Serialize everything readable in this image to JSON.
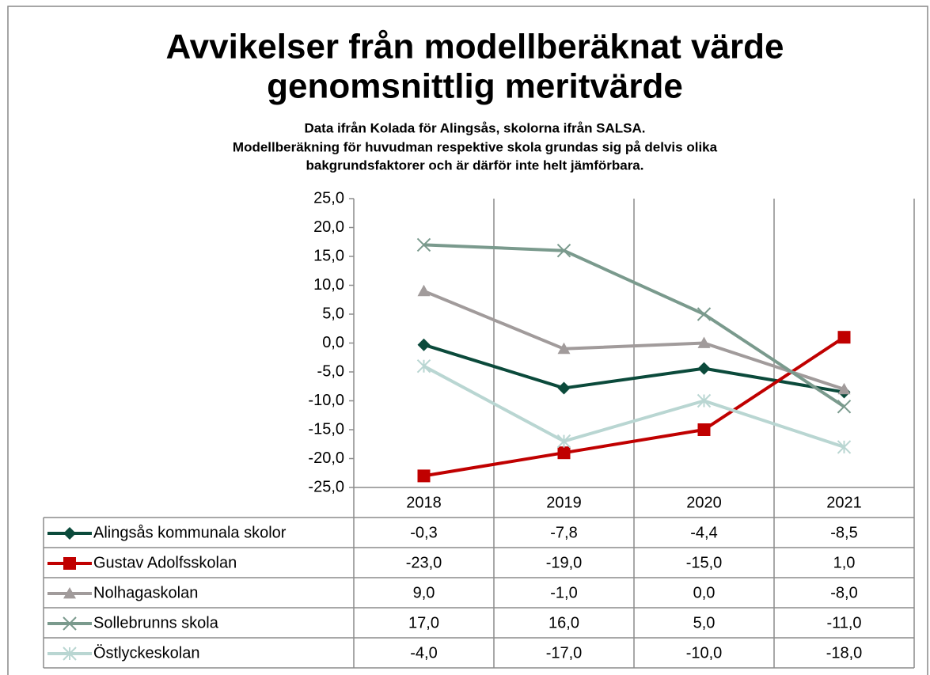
{
  "chart_data": {
    "type": "line",
    "title": [
      "Avvikelser från modellberäknat värde",
      "genomsnittlig meritvärde"
    ],
    "subtitle": [
      "Data ifrån Kolada för Alingsås, skolorna ifrån SALSA.",
      "Modellberäkning för huvudman respektive skola grundas sig på delvis olika",
      "bakgrundsfaktorer och är därför inte helt jämförbara."
    ],
    "categories": [
      "2018",
      "2019",
      "2020",
      "2021"
    ],
    "ylim": [
      -25,
      25
    ],
    "yticks": [
      {
        "value": -25,
        "label": "-25,0"
      },
      {
        "value": -20,
        "label": "-20,0"
      },
      {
        "value": -15,
        "label": "-15,0"
      },
      {
        "value": -10,
        "label": "-10,0"
      },
      {
        "value": -5,
        "label": "-5,0"
      },
      {
        "value": 0,
        "label": "0,0"
      },
      {
        "value": 5,
        "label": "5,0"
      },
      {
        "value": 10,
        "label": "10,0"
      },
      {
        "value": 15,
        "label": "15,0"
      },
      {
        "value": 20,
        "label": "20,0"
      },
      {
        "value": 25,
        "label": "25,0"
      }
    ],
    "series": [
      {
        "name": "Alingsås kommunala skolor",
        "color": "#0b4a3b",
        "marker": "diamond",
        "values": [
          -0.3,
          -7.8,
          -4.4,
          -8.5
        ],
        "value_labels": [
          "-0,3",
          "-7,8",
          "-4,4",
          "-8,5"
        ]
      },
      {
        "name": "Gustav Adolfsskolan",
        "color": "#c00000",
        "marker": "square",
        "values": [
          -23,
          -19,
          -15,
          1
        ],
        "value_labels": [
          "-23,0",
          "-19,0",
          "-15,0",
          "1,0"
        ]
      },
      {
        "name": "Nolhagaskolan",
        "color": "#a19b9b",
        "marker": "triangle",
        "values": [
          9,
          -1,
          0,
          -8
        ],
        "value_labels": [
          "9,0",
          "-1,0",
          "0,0",
          "-8,0"
        ]
      },
      {
        "name": "Sollebrunns skola",
        "color": "#7a9a8d",
        "marker": "x",
        "values": [
          17,
          16,
          5,
          -11
        ],
        "value_labels": [
          "17,0",
          "16,0",
          "5,0",
          "-11,0"
        ]
      },
      {
        "name": "Östlyckeskolan",
        "color": "#b9d6d2",
        "marker": "star",
        "values": [
          -4,
          -17,
          -10,
          -18
        ],
        "value_labels": [
          "-4,0",
          "-17,0",
          "-10,0",
          "-18,0"
        ]
      }
    ]
  }
}
